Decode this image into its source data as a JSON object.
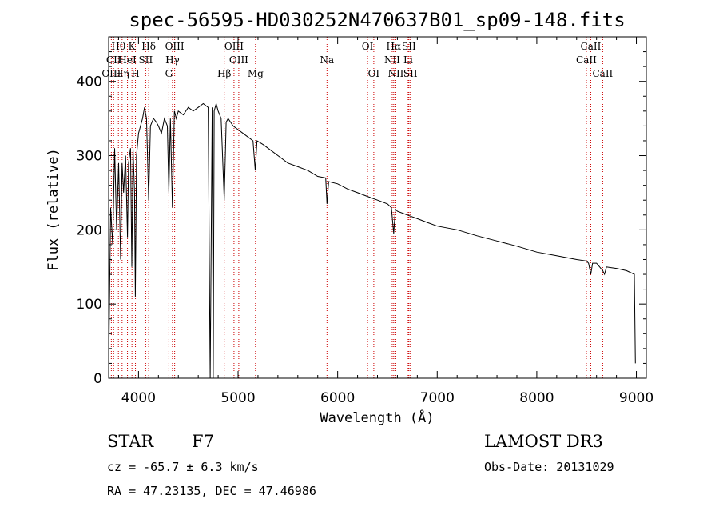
{
  "chart_data": {
    "type": "line",
    "title": "spec-56595-HD030252N470637B01_sp09-148.fits",
    "xlabel": "Wavelength (Å)",
    "ylabel": "Flux (relative)",
    "xlim": [
      3700,
      9100
    ],
    "ylim": [
      0,
      460
    ],
    "xticks": [
      4000,
      5000,
      6000,
      7000,
      8000,
      9000
    ],
    "yticks": [
      0,
      100,
      200,
      300,
      400
    ],
    "series": [
      {
        "name": "spectrum",
        "x": [
          3700,
          3720,
          3740,
          3760,
          3780,
          3800,
          3820,
          3835,
          3850,
          3870,
          3889,
          3900,
          3920,
          3933,
          3945,
          3960,
          3968,
          3980,
          4000,
          4020,
          4040,
          4060,
          4080,
          4102,
          4120,
          4150,
          4180,
          4200,
          4230,
          4260,
          4290,
          4305,
          4320,
          4340,
          4360,
          4380,
          4400,
          4450,
          4500,
          4550,
          4600,
          4650,
          4700,
          4720,
          4740,
          4750,
          4760,
          4780,
          4800,
          4830,
          4861,
          4880,
          4900,
          4950,
          5000,
          5050,
          5100,
          5150,
          5172,
          5190,
          5250,
          5300,
          5400,
          5500,
          5600,
          5700,
          5800,
          5880,
          5893,
          5910,
          6000,
          6100,
          6200,
          6300,
          6400,
          6500,
          6540,
          6563,
          6580,
          6600,
          6700,
          6800,
          6900,
          7000,
          7200,
          7400,
          7600,
          7800,
          8000,
          8200,
          8400,
          8498,
          8520,
          8542,
          8560,
          8600,
          8662,
          8680,
          8700,
          8800,
          8900,
          8980,
          8990
        ],
        "y": [
          10,
          230,
          180,
          310,
          200,
          290,
          160,
          290,
          250,
          300,
          190,
          290,
          310,
          150,
          310,
          250,
          110,
          300,
          330,
          340,
          350,
          365,
          350,
          240,
          340,
          350,
          345,
          340,
          330,
          350,
          340,
          250,
          350,
          230,
          360,
          350,
          360,
          355,
          365,
          360,
          365,
          370,
          365,
          0,
          365,
          0,
          360,
          370,
          360,
          350,
          240,
          345,
          350,
          340,
          335,
          330,
          325,
          320,
          280,
          320,
          315,
          310,
          300,
          290,
          285,
          280,
          272,
          270,
          235,
          265,
          262,
          255,
          250,
          245,
          240,
          235,
          230,
          195,
          228,
          225,
          220,
          215,
          210,
          205,
          200,
          192,
          185,
          178,
          170,
          165,
          160,
          158,
          155,
          140,
          155,
          155,
          145,
          140,
          150,
          148,
          145,
          140,
          20
        ]
      }
    ],
    "line_marks": [
      {
        "label": "Hθ",
        "wavelength": 3798,
        "row": 0
      },
      {
        "label": "CII",
        "wavelength": 3750,
        "row": 1
      },
      {
        "label": "OIII",
        "wavelength": 3727,
        "row": 2
      },
      {
        "label": "Hη",
        "wavelength": 3835,
        "row": 2
      },
      {
        "label": "K",
        "wavelength": 3934,
        "row": 0
      },
      {
        "label": "HeI",
        "wavelength": 3889,
        "row": 1
      },
      {
        "label": "H",
        "wavelength": 3969,
        "row": 2
      },
      {
        "label": "SII",
        "wavelength": 4072,
        "row": 1
      },
      {
        "label": "Hδ",
        "wavelength": 4102,
        "row": 0
      },
      {
        "label": "OIII",
        "wavelength": 4363,
        "row": 0
      },
      {
        "label": "Hγ",
        "wavelength": 4341,
        "row": 1
      },
      {
        "label": "G",
        "wavelength": 4305,
        "row": 2
      },
      {
        "label": "Hβ",
        "wavelength": 4861,
        "row": 2
      },
      {
        "label": "OIII",
        "wavelength": 4959,
        "row": 0
      },
      {
        "label": "OIII",
        "wavelength": 5007,
        "row": 1
      },
      {
        "label": "Mg",
        "wavelength": 5175,
        "row": 2
      },
      {
        "label": "Na",
        "wavelength": 5893,
        "row": 1
      },
      {
        "label": "OI",
        "wavelength": 6300,
        "row": 0
      },
      {
        "label": "OI",
        "wavelength": 6363,
        "row": 2
      },
      {
        "label": "Hα",
        "wavelength": 6563,
        "row": 0
      },
      {
        "label": "NII",
        "wavelength": 6548,
        "row": 1
      },
      {
        "label": "NII",
        "wavelength": 6584,
        "row": 2
      },
      {
        "label": "SII",
        "wavelength": 6716,
        "row": 0
      },
      {
        "label": "Li",
        "wavelength": 6708,
        "row": 1
      },
      {
        "label": "SII",
        "wavelength": 6731,
        "row": 2
      },
      {
        "label": "CaII",
        "wavelength": 8542,
        "row": 0
      },
      {
        "label": "CaII",
        "wavelength": 8498,
        "row": 1
      },
      {
        "label": "CaII",
        "wavelength": 8662,
        "row": 2
      }
    ],
    "grid": false,
    "legend": "none"
  },
  "info": {
    "object_class": "STAR",
    "subclass": "F7",
    "survey": "LAMOST DR3",
    "redshift_line": "cz = -65.7 ± 6.3 km/s",
    "obs_date": "Obs-Date: 20131029",
    "coords": "RA =  47.23135, DEC =  47.46986"
  },
  "colors": {
    "spectrum": "#000000",
    "line_marks": "#cc0000",
    "background": "#ffffff"
  }
}
